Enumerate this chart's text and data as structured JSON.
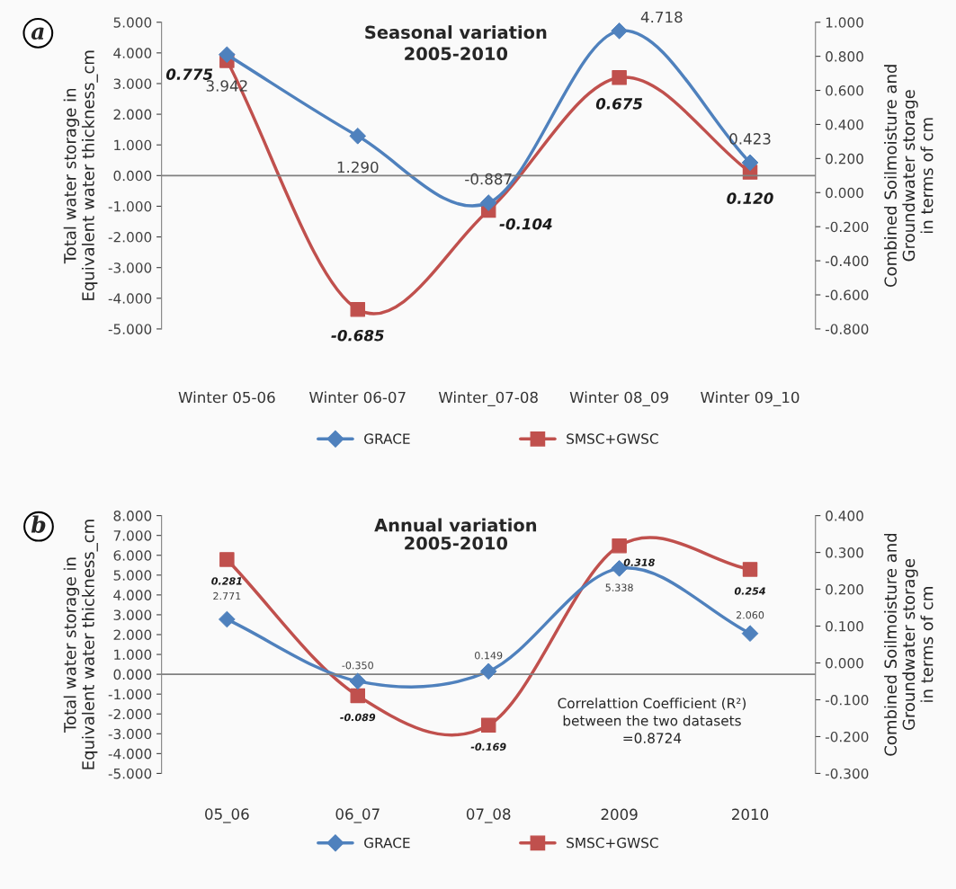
{
  "chart_data": [
    {
      "type": "line",
      "title": "Seasonal variation",
      "subtitle": "2005-2010",
      "ylabel": "Total water storage in\nEquivalent water thickness_cm",
      "y2label": "Combined Soilmoisture and\nGroundwater storage\nin terms of cm",
      "annotations": [
        "a"
      ],
      "categories": [
        "Winter 05-06",
        "Winter 06-07",
        "Winter_07-08",
        "Winter 08_09",
        "Winter 09_10"
      ],
      "series": [
        {
          "name": "GRACE",
          "color": "#4f81bd",
          "marker": "diamond",
          "values": [
            3.942,
            1.29,
            -0.887,
            4.718,
            0.423
          ],
          "value_labels": [
            "3.942",
            "1.290",
            "-0.887",
            "4.718",
            "0.423"
          ]
        },
        {
          "name": "SMSC+GWSC",
          "color": "#c0504d",
          "marker": "square",
          "axis": "y2",
          "values": [
            0.775,
            -0.685,
            -0.104,
            0.675,
            0.12
          ],
          "value_labels": [
            "0.775",
            "-0.685",
            "-0.104",
            "0.675",
            "0.120"
          ]
        }
      ],
      "ylim": [
        -5,
        5
      ],
      "yticks": [
        {
          "value": -5,
          "label": "-5.000"
        },
        {
          "value": -4,
          "label": "-4.000"
        },
        {
          "value": -3,
          "label": "-3.000"
        },
        {
          "value": -2,
          "label": "-2.000"
        },
        {
          "value": -1,
          "label": "-1.000"
        },
        {
          "value": 0,
          "label": "0.000"
        },
        {
          "value": 1,
          "label": "1.000"
        },
        {
          "value": 2,
          "label": "2.000"
        },
        {
          "value": 3,
          "label": "3.000"
        },
        {
          "value": 4,
          "label": "4.000"
        },
        {
          "value": 5,
          "label": "5.000"
        }
      ],
      "y2lim": [
        -0.8,
        1.0
      ],
      "y2ticks": [
        {
          "value": -0.8,
          "label": "-0.800"
        },
        {
          "value": -0.6,
          "label": "-0.600"
        },
        {
          "value": -0.4,
          "label": "-0.400"
        },
        {
          "value": -0.2,
          "label": "-0.200"
        },
        {
          "value": 0,
          "label": "0.000"
        },
        {
          "value": 0.2,
          "label": "0.200"
        },
        {
          "value": 0.4,
          "label": "0.400"
        },
        {
          "value": 0.6,
          "label": "0.600"
        },
        {
          "value": 0.8,
          "label": "0.800"
        },
        {
          "value": 1.0,
          "label": "1.000"
        }
      ],
      "ref_lines": [
        {
          "axis": "y",
          "value": 0,
          "color": "#808080"
        }
      ],
      "grid": false,
      "legend": "bottom",
      "line_style": "solid"
    },
    {
      "type": "line",
      "title": "Annual variation",
      "subtitle": "2005-2010",
      "ylabel": "Total water storage in\nEquivalent water thickness_cm",
      "y2label": "Combined Soilmoisture and\nGroundwater storage\nin terms of cm",
      "annotations": [
        "b",
        "Correlattion Coefficient (R²)\nbetween the two datasets\n=0.8724"
      ],
      "categories": [
        "05_06",
        "06_07",
        "07_08",
        "2009",
        "2010"
      ],
      "series": [
        {
          "name": "GRACE",
          "color": "#4f81bd",
          "marker": "diamond",
          "values": [
            2.771,
            -0.35,
            0.149,
            5.338,
            2.06
          ],
          "value_labels": [
            "2.771",
            "-0.350",
            "0.149",
            "5.338",
            "2.060"
          ]
        },
        {
          "name": "SMSC+GWSC",
          "color": "#c0504d",
          "marker": "square",
          "axis": "y2",
          "values": [
            0.281,
            -0.089,
            -0.169,
            0.318,
            0.254
          ],
          "value_labels": [
            "0.281",
            "-0.089",
            "-0.169",
            "0.318",
            "0.254"
          ]
        }
      ],
      "ylim": [
        -5,
        8
      ],
      "yticks": [
        {
          "value": -5,
          "label": "-5.000"
        },
        {
          "value": -4,
          "label": "-4.000"
        },
        {
          "value": -3,
          "label": "-3.000"
        },
        {
          "value": -2,
          "label": "-2.000"
        },
        {
          "value": -1,
          "label": "-1.000"
        },
        {
          "value": 0,
          "label": "0.000"
        },
        {
          "value": 1,
          "label": "1.000"
        },
        {
          "value": 2,
          "label": "2.000"
        },
        {
          "value": 3,
          "label": "3.000"
        },
        {
          "value": 4,
          "label": "4.000"
        },
        {
          "value": 5,
          "label": "5.000"
        },
        {
          "value": 6,
          "label": "6.000"
        },
        {
          "value": 7,
          "label": "7.000"
        },
        {
          "value": 8,
          "label": "8.000"
        }
      ],
      "y2lim": [
        -0.3,
        0.4
      ],
      "y2ticks": [
        {
          "value": -0.3,
          "label": "-0.300"
        },
        {
          "value": -0.2,
          "label": "-0.200"
        },
        {
          "value": -0.1,
          "label": "-0.100"
        },
        {
          "value": 0,
          "label": "0.000"
        },
        {
          "value": 0.1,
          "label": "0.100"
        },
        {
          "value": 0.2,
          "label": "0.200"
        },
        {
          "value": 0.3,
          "label": "0.300"
        },
        {
          "value": 0.4,
          "label": "0.400"
        }
      ],
      "ref_lines": [
        {
          "axis": "y",
          "value": 0,
          "color": "#808080"
        }
      ],
      "grid": false,
      "legend": "bottom",
      "line_style": "solid"
    }
  ]
}
